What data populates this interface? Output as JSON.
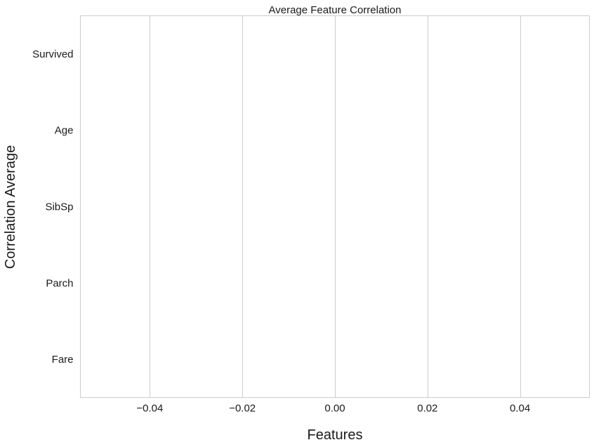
{
  "chart_data": {
    "type": "bar",
    "orientation": "horizontal",
    "title": "Average Feature Correlation",
    "xlabel": "Features",
    "ylabel": "Correlation Average",
    "categories": [
      "Survived",
      "Age",
      "SibSp",
      "Parch",
      "Fare"
    ],
    "values": [
      0,
      0,
      0,
      0,
      0
    ],
    "xlim": [
      -0.055,
      0.055
    ],
    "xticks": [
      -0.04,
      -0.02,
      0.0,
      0.02,
      0.04
    ],
    "xtick_labels": [
      "−0.04",
      "−0.02",
      "0.00",
      "0.02",
      "0.04"
    ],
    "grid": "vertical",
    "colors": {
      "grid": "#cccccc",
      "frame": "#cccccc",
      "bar": "#4c72b0",
      "text": "#1a1a1a"
    }
  }
}
